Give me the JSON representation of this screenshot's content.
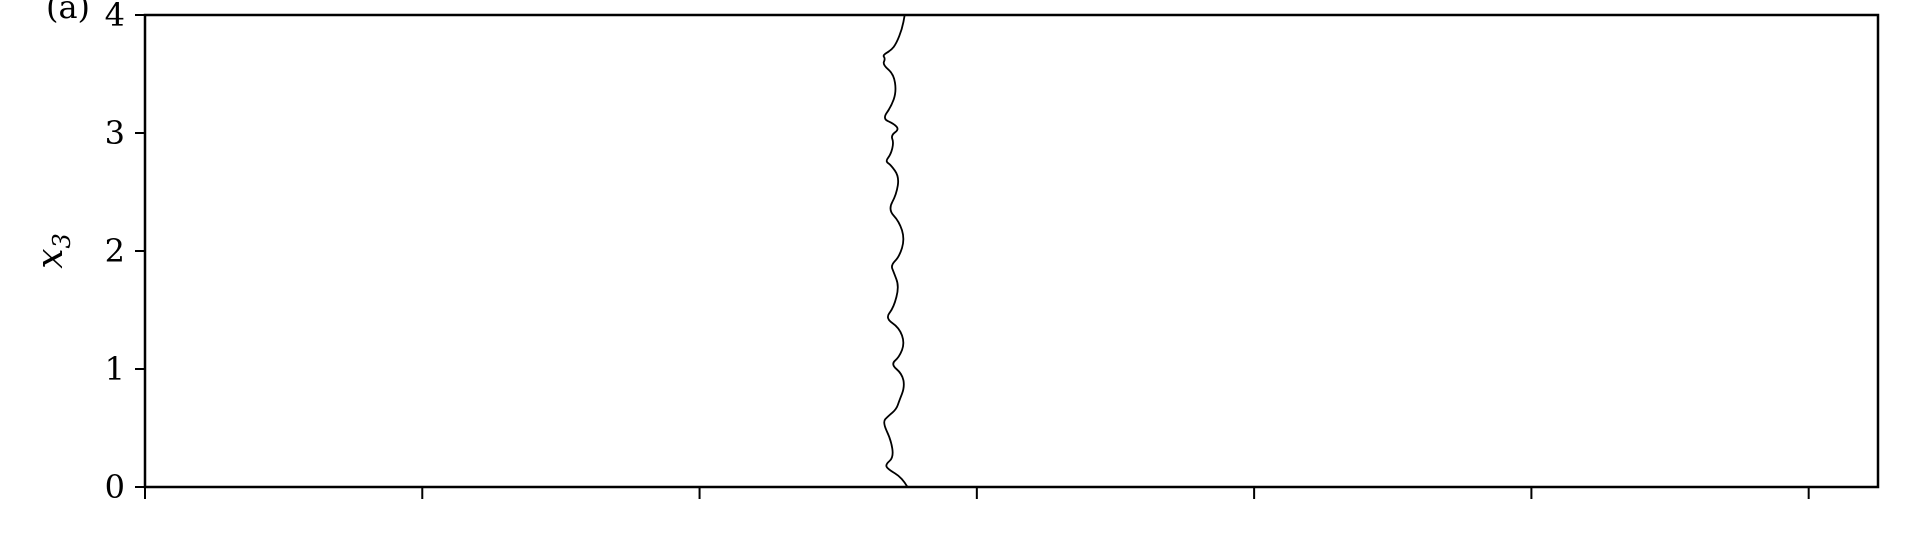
{
  "chart_data": {
    "type": "line",
    "panel_label": "(a)",
    "xlabel": "",
    "ylabel": "x3",
    "ylabel_base": "x",
    "ylabel_sub": "3",
    "xlim": [
      0,
      6.25
    ],
    "ylim": [
      0,
      4
    ],
    "yticks": [
      {
        "value": 0,
        "label": "0"
      },
      {
        "value": 1,
        "label": "1"
      },
      {
        "value": 2,
        "label": "2"
      },
      {
        "value": 3,
        "label": "3"
      },
      {
        "value": 4,
        "label": "4"
      }
    ],
    "xticks": [
      0,
      1,
      2,
      3,
      4,
      5,
      6
    ],
    "grid": false,
    "color": "#000000",
    "series": [
      {
        "points": [
          [
            2.75,
            0.0
          ],
          [
            2.73,
            0.08
          ],
          [
            2.68,
            0.15
          ],
          [
            2.67,
            0.19
          ],
          [
            2.7,
            0.25
          ],
          [
            2.69,
            0.4
          ],
          [
            2.66,
            0.55
          ],
          [
            2.68,
            0.6
          ],
          [
            2.71,
            0.66
          ],
          [
            2.72,
            0.73
          ],
          [
            2.74,
            0.85
          ],
          [
            2.73,
            0.96
          ],
          [
            2.69,
            1.04
          ],
          [
            2.72,
            1.1
          ],
          [
            2.74,
            1.22
          ],
          [
            2.72,
            1.35
          ],
          [
            2.67,
            1.43
          ],
          [
            2.7,
            1.52
          ],
          [
            2.72,
            1.7
          ],
          [
            2.7,
            1.82
          ],
          [
            2.69,
            1.88
          ],
          [
            2.72,
            1.95
          ],
          [
            2.74,
            2.1
          ],
          [
            2.72,
            2.25
          ],
          [
            2.68,
            2.35
          ],
          [
            2.71,
            2.48
          ],
          [
            2.72,
            2.63
          ],
          [
            2.69,
            2.73
          ],
          [
            2.67,
            2.76
          ],
          [
            2.69,
            2.82
          ],
          [
            2.7,
            2.92
          ],
          [
            2.69,
            2.98
          ],
          [
            2.72,
            3.03
          ],
          [
            2.7,
            3.08
          ],
          [
            2.66,
            3.12
          ],
          [
            2.69,
            3.22
          ],
          [
            2.71,
            3.35
          ],
          [
            2.7,
            3.5
          ],
          [
            2.66,
            3.58
          ],
          [
            2.67,
            3.63
          ],
          [
            2.66,
            3.66
          ],
          [
            2.69,
            3.7
          ],
          [
            2.71,
            3.76
          ],
          [
            2.73,
            3.88
          ],
          [
            2.74,
            4.0
          ]
        ]
      }
    ]
  }
}
